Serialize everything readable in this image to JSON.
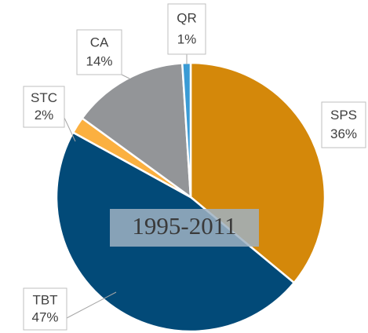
{
  "chart_data": {
    "type": "pie",
    "annotation": "1995-2011",
    "categories": [
      "SPS",
      "TBT",
      "STC",
      "CA",
      "QR"
    ],
    "values": [
      36,
      47,
      2,
      14,
      1
    ],
    "value_labels": [
      "36%",
      "47%",
      "2%",
      "14%",
      "1%"
    ],
    "colors": [
      "#d4880a",
      "#024a78",
      "#fbb040",
      "#939598",
      "#3a9bd5"
    ]
  }
}
